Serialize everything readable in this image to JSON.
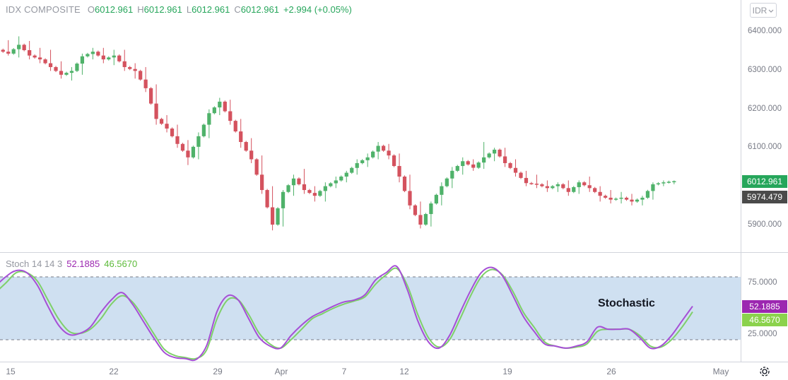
{
  "symbol": "IDX COMPOSITE",
  "ohlc": {
    "o_label": "O",
    "o": "6012.961",
    "h_label": "H",
    "h": "6012.961",
    "l_label": "L",
    "l": "6012.961",
    "c_label": "C",
    "c": "6012.961",
    "change": "+2.994 (+0.05%)"
  },
  "currency": "IDR",
  "stoch": {
    "label": "Stoch 14 14 3",
    "k_value": "52.1885",
    "d_value": "46.5670"
  },
  "annotation": "Stochastic",
  "price_axis": [
    "6400.000",
    "6300.000",
    "6200.000",
    "6100.000",
    "5900.000"
  ],
  "stoch_axis": [
    "75.0000",
    "25.0000"
  ],
  "price_tags": {
    "last": "6012.961",
    "second": "5974.479"
  },
  "time_axis": [
    "15",
    "22",
    "29",
    "Apr",
    "7",
    "12",
    "19",
    "26",
    "May"
  ],
  "colors": {
    "up": "#4fb26a",
    "down": "#d4525e",
    "stoch_k": "#a64fd6",
    "stoch_d": "#7fd06a",
    "band_fill": "#cfe0f1",
    "grid": "#d1d4dc",
    "tag_last": "#26a65b",
    "tag_second": "#4a4a4a",
    "tag_k": "#9c27b0",
    "tag_d": "#8bd24c"
  },
  "chart_data": [
    {
      "type": "candlestick",
      "title": "IDX COMPOSITE",
      "ylim": [
        5870,
        6440
      ],
      "x_range": [
        0,
        65
      ],
      "x_ticks": [
        {
          "label": "15",
          "x": 1
        },
        {
          "label": "22",
          "x": 10
        },
        {
          "label": "29",
          "x": 19
        },
        {
          "label": "Apr",
          "x": 25
        },
        {
          "label": "7",
          "x": 30
        },
        {
          "label": "12",
          "x": 35
        },
        {
          "label": "19",
          "x": 44
        },
        {
          "label": "26",
          "x": 53
        },
        {
          "label": "May",
          "x": 62
        }
      ],
      "candles": [
        [
          6355,
          6380,
          6340,
          6345
        ],
        [
          6345,
          6390,
          6335,
          6368
        ],
        [
          6368,
          6378,
          6330,
          6340
        ],
        [
          6340,
          6360,
          6320,
          6330
        ],
        [
          6330,
          6355,
          6300,
          6310
        ],
        [
          6310,
          6325,
          6280,
          6290
        ],
        [
          6290,
          6310,
          6275,
          6300
        ],
        [
          6300,
          6345,
          6290,
          6338
        ],
        [
          6338,
          6360,
          6330,
          6350
        ],
        [
          6350,
          6360,
          6320,
          6330
        ],
        [
          6330,
          6355,
          6315,
          6340
        ],
        [
          6340,
          6355,
          6300,
          6310
        ],
        [
          6310,
          6320,
          6280,
          6300
        ],
        [
          6300,
          6310,
          6245,
          6255
        ],
        [
          6255,
          6265,
          6160,
          6175
        ],
        [
          6175,
          6185,
          6140,
          6150
        ],
        [
          6150,
          6160,
          6100,
          6110
        ],
        [
          6110,
          6120,
          6055,
          6075
        ],
        [
          6075,
          6140,
          6070,
          6130
        ],
        [
          6130,
          6200,
          6125,
          6190
        ],
        [
          6190,
          6230,
          6185,
          6220
        ],
        [
          6220,
          6225,
          6160,
          6170
        ],
        [
          6170,
          6175,
          6100,
          6115
        ],
        [
          6115,
          6125,
          6060,
          6070
        ],
        [
          6070,
          6080,
          5980,
          5990
        ],
        [
          5990,
          6000,
          5885,
          5900
        ],
        [
          5900,
          5990,
          5895,
          5985
        ],
        [
          5985,
          6030,
          5975,
          6020
        ],
        [
          6020,
          6045,
          5980,
          5990
        ],
        [
          5990,
          6000,
          5960,
          5975
        ],
        [
          5975,
          6010,
          5960,
          6000
        ],
        [
          6000,
          6025,
          5995,
          6015
        ],
        [
          6015,
          6040,
          6010,
          6035
        ],
        [
          6035,
          6070,
          6030,
          6060
        ],
        [
          6060,
          6085,
          6050,
          6075
        ],
        [
          6075,
          6115,
          6070,
          6105
        ],
        [
          6105,
          6110,
          6070,
          6080
        ],
        [
          6080,
          6085,
          6010,
          6025
        ],
        [
          6025,
          6030,
          5940,
          5950
        ],
        [
          5950,
          5960,
          5890,
          5900
        ],
        [
          5900,
          5960,
          5895,
          5955
        ],
        [
          5955,
          6010,
          5950,
          6000
        ],
        [
          6000,
          6050,
          5995,
          6040
        ],
        [
          6040,
          6075,
          6030,
          6065
        ],
        [
          6065,
          6070,
          6040,
          6048
        ],
        [
          6048,
          6115,
          6045,
          6075
        ],
        [
          6075,
          6100,
          6065,
          6095
        ],
        [
          6095,
          6100,
          6050,
          6060
        ],
        [
          6060,
          6070,
          6025,
          6035
        ],
        [
          6035,
          6040,
          6000,
          6008
        ],
        [
          6008,
          6030,
          5995,
          6005
        ],
        [
          6005,
          6015,
          5985,
          5995
        ],
        [
          5995,
          6010,
          5985,
          6005
        ],
        [
          6005,
          6015,
          5975,
          5985
        ],
        [
          5985,
          6015,
          5980,
          6010
        ],
        [
          6010,
          6025,
          5985,
          5995
        ],
        [
          5995,
          6000,
          5960,
          5975
        ],
        [
          5975,
          5990,
          5955,
          5965
        ],
        [
          5965,
          5985,
          5955,
          5970
        ],
        [
          5970,
          5980,
          5950,
          5960
        ],
        [
          5960,
          5975,
          5950,
          5970
        ],
        [
          5970,
          6010,
          5965,
          6005
        ],
        [
          6005,
          6015,
          6000,
          6010
        ],
        [
          6010,
          6015,
          6005,
          6013
        ]
      ],
      "last_price": 6012.961
    },
    {
      "type": "line",
      "title": "Stoch 14 14 3",
      "ylim": [
        0,
        100
      ],
      "bands": [
        20,
        80
      ],
      "x_range": [
        0,
        65
      ],
      "series": [
        {
          "name": "%K",
          "points": [
            [
              -1.5,
              66
            ],
            [
              0,
              80
            ],
            [
              1,
              86
            ],
            [
              2,
              84
            ],
            [
              3,
              72
            ],
            [
              4,
              52
            ],
            [
              5,
              34
            ],
            [
              6,
              25
            ],
            [
              7,
              26
            ],
            [
              8,
              32
            ],
            [
              9,
              46
            ],
            [
              10,
              58
            ],
            [
              11,
              65
            ],
            [
              12,
              54
            ],
            [
              13,
              38
            ],
            [
              14,
              22
            ],
            [
              15,
              8
            ],
            [
              16,
              3
            ],
            [
              17,
              2
            ],
            [
              18,
              1
            ],
            [
              19,
              14
            ],
            [
              20,
              47
            ],
            [
              21,
              62
            ],
            [
              22,
              58
            ],
            [
              23,
              40
            ],
            [
              24,
              22
            ],
            [
              25,
              14
            ],
            [
              26,
              12
            ],
            [
              27,
              24
            ],
            [
              28,
              34
            ],
            [
              29,
              42
            ],
            [
              30,
              47
            ],
            [
              31,
              52
            ],
            [
              32,
              56
            ],
            [
              33,
              58
            ],
            [
              34,
              63
            ],
            [
              35,
              77
            ],
            [
              36,
              84
            ],
            [
              37,
              90
            ],
            [
              38,
              68
            ],
            [
              39,
              38
            ],
            [
              40,
              18
            ],
            [
              41,
              12
            ],
            [
              42,
              24
            ],
            [
              43,
              46
            ],
            [
              44,
              67
            ],
            [
              45,
              84
            ],
            [
              46,
              89
            ],
            [
              47,
              81
            ],
            [
              48,
              62
            ],
            [
              49,
              42
            ],
            [
              50,
              28
            ],
            [
              51,
              16
            ],
            [
              52,
              14
            ],
            [
              53,
              12
            ],
            [
              54,
              14
            ],
            [
              55,
              18
            ],
            [
              56,
              32
            ],
            [
              57,
              30
            ],
            [
              58,
              30
            ],
            [
              59,
              30
            ],
            [
              60,
              22
            ],
            [
              61,
              12
            ],
            [
              62,
              14
            ],
            [
              63,
              24
            ],
            [
              64,
              38
            ],
            [
              65,
              52
            ]
          ]
        },
        {
          "name": "%D",
          "points": [
            [
              -1.5,
              60
            ],
            [
              0,
              74
            ],
            [
              1,
              84
            ],
            [
              2,
              84
            ],
            [
              3,
              76
            ],
            [
              4,
              58
            ],
            [
              5,
              40
            ],
            [
              6,
              28
            ],
            [
              7,
              26
            ],
            [
              8,
              30
            ],
            [
              9,
              40
            ],
            [
              10,
              54
            ],
            [
              11,
              62
            ],
            [
              12,
              56
            ],
            [
              13,
              42
            ],
            [
              14,
              26
            ],
            [
              15,
              11
            ],
            [
              16,
              5
            ],
            [
              17,
              3
            ],
            [
              18,
              2
            ],
            [
              19,
              10
            ],
            [
              20,
              40
            ],
            [
              21,
              58
            ],
            [
              22,
              58
            ],
            [
              23,
              44
            ],
            [
              24,
              26
            ],
            [
              25,
              16
            ],
            [
              26,
              12
            ],
            [
              27,
              20
            ],
            [
              28,
              30
            ],
            [
              29,
              40
            ],
            [
              30,
              45
            ],
            [
              31,
              50
            ],
            [
              32,
              54
            ],
            [
              33,
              57
            ],
            [
              34,
              61
            ],
            [
              35,
              73
            ],
            [
              36,
              82
            ],
            [
              37,
              88
            ],
            [
              38,
              72
            ],
            [
              39,
              44
            ],
            [
              40,
              22
            ],
            [
              41,
              13
            ],
            [
              42,
              20
            ],
            [
              43,
              40
            ],
            [
              44,
              62
            ],
            [
              45,
              80
            ],
            [
              46,
              87
            ],
            [
              47,
              82
            ],
            [
              48,
              66
            ],
            [
              49,
              46
            ],
            [
              50,
              32
            ],
            [
              51,
              18
            ],
            [
              52,
              14
            ],
            [
              53,
              12
            ],
            [
              54,
              13
            ],
            [
              55,
              16
            ],
            [
              56,
              28
            ],
            [
              57,
              30
            ],
            [
              58,
              30
            ],
            [
              59,
              30
            ],
            [
              60,
              24
            ],
            [
              61,
              14
            ],
            [
              62,
              13
            ],
            [
              63,
              20
            ],
            [
              64,
              32
            ],
            [
              65,
              46.567
            ]
          ]
        }
      ]
    }
  ]
}
